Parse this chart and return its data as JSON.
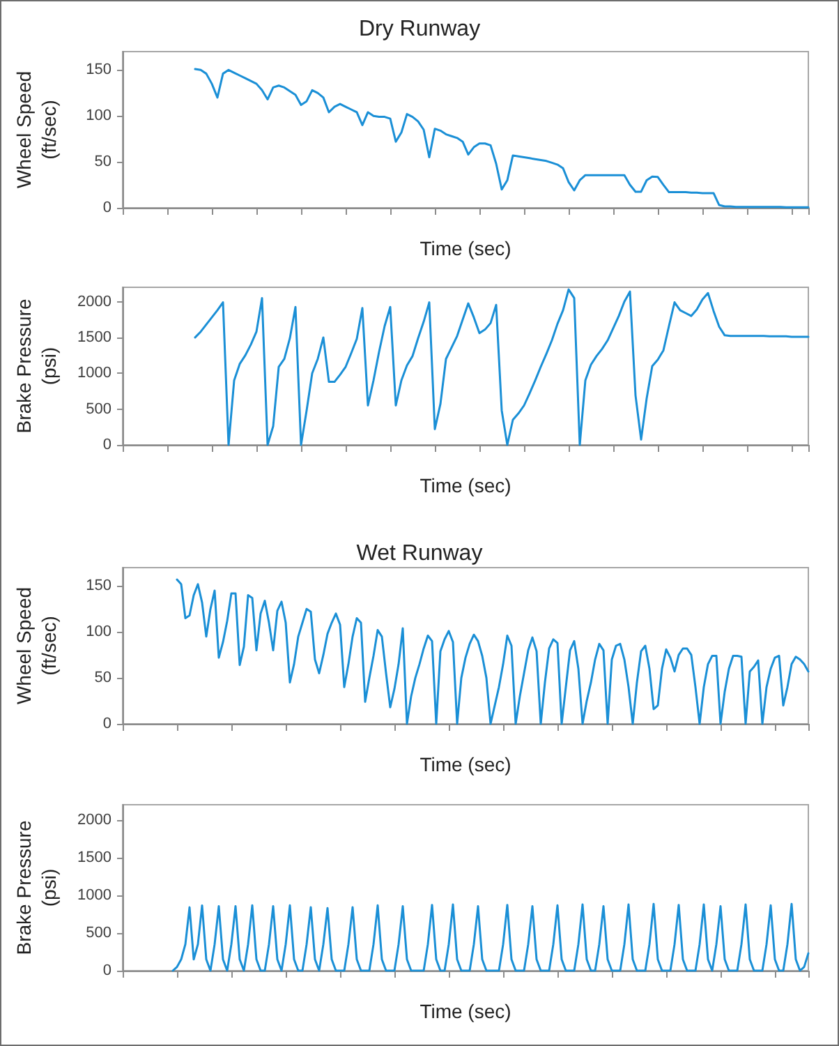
{
  "chart_data": [
    {
      "type": "line",
      "title": "Dry Runway",
      "xlabel": "Time (sec)",
      "ylabel": "Wheel Speed\n(ft/sec)",
      "color": "#1a8fd6",
      "line_style": "solid",
      "grid": false,
      "tick_labels": "y",
      "categories": [
        null,
        null,
        null,
        null,
        null,
        null,
        null,
        null,
        null,
        null,
        null,
        null,
        null,
        null,
        null,
        null,
        null,
        null,
        null,
        null,
        null,
        null,
        null,
        null,
        null,
        null,
        null,
        null,
        null,
        null,
        null,
        null,
        null,
        null,
        null,
        null,
        null,
        null,
        null,
        null,
        null,
        null,
        null,
        null,
        null,
        null,
        null,
        null,
        null,
        null,
        null,
        null,
        null,
        null,
        null,
        null,
        null,
        null,
        null,
        null,
        null,
        null,
        null,
        null,
        null,
        null,
        null,
        null,
        null,
        null,
        null,
        null,
        null,
        null,
        null,
        null,
        null,
        null,
        null,
        null,
        null,
        null,
        null,
        null,
        null,
        null,
        null,
        null,
        null,
        null,
        null,
        null,
        null,
        null,
        null,
        null,
        null,
        null,
        null,
        null,
        null,
        null,
        null,
        null,
        null,
        null,
        null,
        null,
        null,
        null,
        null,
        null,
        null,
        null,
        null,
        null,
        null,
        null,
        null,
        null,
        null,
        null,
        null,
        null
      ],
      "ylim": [
        0,
        170
      ],
      "yticks": [
        0,
        50,
        100,
        150
      ],
      "values": [
        null,
        null,
        null,
        null,
        null,
        null,
        null,
        null,
        null,
        null,
        null,
        null,
        null,
        151,
        150,
        146,
        135,
        120,
        146,
        150,
        147,
        144,
        141,
        138,
        135,
        128,
        118,
        131,
        133,
        131,
        127,
        123,
        112,
        116,
        128,
        125,
        120,
        104,
        110,
        113,
        110,
        107,
        104,
        90,
        104,
        100,
        99,
        99,
        97,
        72,
        82,
        102,
        99,
        94,
        85,
        55,
        86,
        84,
        80,
        78,
        76,
        72,
        58,
        66,
        70,
        70,
        68,
        48,
        20,
        30,
        57,
        56,
        55,
        54,
        53,
        52,
        51,
        49,
        47,
        43,
        28,
        19,
        30,
        35.5,
        35.5,
        35.5,
        35.5,
        35.5,
        35.5,
        35.5,
        35.5,
        25,
        17.5,
        17.5,
        30,
        34,
        33.5,
        25,
        17,
        17,
        17,
        17,
        16.5,
        16.5,
        16,
        16,
        16,
        3,
        1.5,
        1.5,
        1,
        1,
        1,
        1,
        1,
        1,
        1,
        1,
        1,
        0.5,
        0.5,
        0.5,
        0.5,
        0.5
      ]
    },
    {
      "type": "line",
      "xlabel": "Time (sec)",
      "ylabel": "Brake Pressure\n(psi)",
      "color": "#1a8fd6",
      "line_style": "solid",
      "grid": false,
      "tick_labels": "y",
      "categories": [
        null,
        null,
        null,
        null,
        null,
        null,
        null,
        null,
        null,
        null,
        null,
        null,
        null,
        null,
        null,
        null,
        null,
        null,
        null,
        null,
        null,
        null,
        null,
        null,
        null,
        null,
        null,
        null,
        null,
        null,
        null,
        null,
        null,
        null,
        null,
        null,
        null,
        null,
        null,
        null,
        null,
        null,
        null,
        null,
        null,
        null,
        null,
        null,
        null,
        null,
        null,
        null,
        null,
        null,
        null,
        null,
        null,
        null,
        null,
        null,
        null,
        null,
        null,
        null,
        null,
        null,
        null,
        null,
        null,
        null,
        null,
        null,
        null,
        null,
        null,
        null,
        null,
        null,
        null,
        null,
        null,
        null,
        null,
        null,
        null,
        null,
        null,
        null,
        null,
        null,
        null,
        null,
        null,
        null,
        null,
        null,
        null,
        null,
        null,
        null,
        null,
        null,
        null,
        null,
        null,
        null,
        null,
        null,
        null,
        null,
        null,
        null,
        null,
        null,
        null,
        null,
        null,
        null,
        null,
        null,
        null,
        null,
        null,
        null
      ],
      "ylim": [
        0,
        2200
      ],
      "yticks": [
        0,
        500,
        1000,
        1500,
        2000
      ],
      "values": [
        null,
        null,
        null,
        null,
        null,
        null,
        null,
        null,
        null,
        null,
        null,
        null,
        null,
        1500,
        1580,
        1680,
        1780,
        1880,
        1990,
        0,
        900,
        1130,
        1250,
        1400,
        1580,
        2050,
        0,
        260,
        1090,
        1200,
        1490,
        1925,
        0,
        480,
        1000,
        1200,
        1500,
        880,
        880,
        980,
        1090,
        1280,
        1480,
        1910,
        550,
        900,
        1300,
        1660,
        1925,
        550,
        900,
        1110,
        1240,
        1490,
        1720,
        1990,
        220,
        570,
        1200,
        1360,
        1520,
        1750,
        1975,
        1780,
        1560,
        1610,
        1700,
        1955,
        480,
        0,
        350,
        440,
        550,
        720,
        900,
        1090,
        1270,
        1460,
        1690,
        1880,
        2170,
        2050,
        0,
        900,
        1120,
        1240,
        1340,
        1460,
        1630,
        1800,
        2000,
        2140,
        690,
        75,
        650,
        1100,
        1190,
        1320,
        1660,
        1990,
        1880,
        1840,
        1800,
        1890,
        2030,
        2120,
        1870,
        1650,
        1530,
        1520,
        1520,
        1520,
        1520,
        1520,
        1520,
        1520,
        1515,
        1515,
        1515,
        1515,
        1510,
        1510,
        1510,
        1510
      ]
    },
    {
      "type": "line",
      "title": "Wet Runway",
      "xlabel": "Time (sec)",
      "ylabel": "Wheel Speed\n(ft/sec)",
      "color": "#1a8fd6",
      "line_style": "solid",
      "grid": false,
      "tick_labels": "y",
      "categories": [
        null,
        null,
        null,
        null,
        null,
        null,
        null,
        null,
        null,
        null,
        null,
        null,
        null,
        null,
        null,
        null,
        null,
        null,
        null,
        null,
        null,
        null,
        null,
        null,
        null,
        null,
        null,
        null,
        null,
        null,
        null,
        null,
        null,
        null,
        null,
        null,
        null,
        null,
        null,
        null,
        null,
        null,
        null,
        null,
        null,
        null,
        null,
        null,
        null,
        null,
        null,
        null,
        null,
        null,
        null,
        null,
        null,
        null,
        null,
        null,
        null,
        null,
        null,
        null,
        null,
        null,
        null,
        null,
        null,
        null,
        null,
        null,
        null,
        null,
        null,
        null,
        null,
        null,
        null,
        null,
        null,
        null,
        null,
        null,
        null,
        null,
        null,
        null,
        null,
        null,
        null,
        null,
        null,
        null,
        null,
        null,
        null,
        null,
        null,
        null,
        null,
        null,
        null,
        null,
        null,
        null,
        null,
        null,
        null,
        null,
        null,
        null,
        null,
        null,
        null,
        null,
        null,
        null,
        null,
        null,
        null,
        null,
        null,
        null,
        null,
        null,
        null,
        null,
        null,
        null,
        null,
        null,
        null,
        null,
        null,
        null,
        null,
        null,
        null,
        null,
        null,
        null,
        null,
        null,
        null,
        null,
        null,
        null,
        null,
        null,
        null,
        null,
        null,
        null,
        null,
        null,
        null,
        null,
        null,
        null,
        null,
        null,
        null,
        null,
        null
      ],
      "ylim": [
        0,
        170
      ],
      "yticks": [
        0,
        50,
        100,
        150
      ],
      "values": [
        null,
        null,
        null,
        null,
        null,
        null,
        null,
        null,
        null,
        null,
        null,
        null,
        null,
        157,
        152,
        115,
        118,
        140,
        152,
        132,
        95,
        125,
        145,
        72,
        89,
        112,
        142,
        142,
        64,
        84,
        140,
        137,
        80,
        120,
        134,
        110,
        80,
        123,
        133,
        110,
        45,
        65,
        95,
        110,
        125,
        122,
        70,
        55,
        75,
        98,
        110,
        120,
        108,
        40,
        65,
        95,
        115,
        110,
        24,
        50,
        74,
        102,
        95,
        55,
        18,
        38,
        65,
        104,
        0,
        30,
        50,
        65,
        82,
        96,
        90,
        0,
        79,
        92,
        101,
        89,
        0,
        50,
        72,
        87,
        97,
        90,
        74,
        50,
        0,
        20,
        40,
        65,
        96,
        85,
        0,
        30,
        55,
        80,
        94,
        79,
        0,
        45,
        82,
        92,
        88,
        0,
        40,
        80,
        90,
        60,
        0,
        25,
        45,
        70,
        87,
        80,
        0,
        70,
        85,
        87,
        70,
        40,
        0,
        45,
        79,
        85,
        60,
        16,
        20,
        60,
        81,
        72,
        57,
        75,
        82,
        82,
        75,
        40,
        0,
        40,
        65,
        74,
        74,
        0,
        35,
        60,
        74,
        74,
        73,
        0,
        57,
        62,
        69,
        0,
        40,
        60,
        72,
        74,
        20,
        40,
        65,
        73,
        70,
        65,
        57
      ]
    },
    {
      "type": "line",
      "xlabel": "Time (sec)",
      "ylabel": "Brake Pressure\n(psi)",
      "color": "#1a8fd6",
      "line_style": "solid",
      "grid": false,
      "tick_labels": "y",
      "categories": [
        null,
        null,
        null,
        null,
        null,
        null,
        null,
        null,
        null,
        null,
        null,
        null,
        null,
        null,
        null,
        null,
        null,
        null,
        null,
        null,
        null,
        null,
        null,
        null,
        null,
        null,
        null,
        null,
        null,
        null,
        null,
        null,
        null,
        null,
        null,
        null,
        null,
        null,
        null,
        null,
        null,
        null,
        null,
        null,
        null,
        null,
        null,
        null,
        null,
        null,
        null,
        null,
        null,
        null,
        null,
        null,
        null,
        null,
        null,
        null,
        null,
        null,
        null,
        null,
        null,
        null,
        null,
        null,
        null,
        null,
        null,
        null,
        null,
        null,
        null,
        null,
        null,
        null,
        null,
        null,
        null,
        null,
        null,
        null,
        null,
        null,
        null,
        null,
        null,
        null,
        null,
        null,
        null,
        null,
        null,
        null,
        null,
        null,
        null,
        null,
        null,
        null,
        null,
        null,
        null,
        null,
        null,
        null,
        null,
        null,
        null,
        null,
        null,
        null,
        null,
        null,
        null,
        null,
        null,
        null,
        null,
        null,
        null,
        null,
        null,
        null,
        null,
        null,
        null,
        null,
        null,
        null,
        null,
        null,
        null,
        null,
        null,
        null,
        null,
        null,
        null,
        null,
        null,
        null,
        null,
        null,
        null,
        null,
        null,
        null,
        null,
        null,
        null,
        null,
        null,
        null,
        null,
        null,
        null,
        null,
        null,
        null,
        null,
        null,
        null
      ],
      "ylim": [
        0,
        2200
      ],
      "yticks": [
        0,
        500,
        1000,
        1500,
        2000
      ],
      "values": [
        null,
        null,
        null,
        null,
        null,
        null,
        null,
        null,
        null,
        null,
        null,
        null,
        0,
        50,
        150,
        350,
        840,
        150,
        350,
        865,
        150,
        0,
        350,
        855,
        150,
        0,
        350,
        855,
        150,
        0,
        350,
        866,
        150,
        0,
        0,
        350,
        855,
        150,
        0,
        350,
        866,
        150,
        0,
        0,
        350,
        842,
        150,
        0,
        350,
        830,
        150,
        0,
        0,
        0,
        350,
        842,
        150,
        0,
        0,
        0,
        350,
        866,
        150,
        0,
        0,
        0,
        350,
        854,
        150,
        0,
        0,
        0,
        0,
        350,
        872,
        150,
        0,
        0,
        350,
        878,
        150,
        0,
        0,
        0,
        350,
        854,
        150,
        0,
        0,
        0,
        0,
        350,
        872,
        150,
        0,
        0,
        0,
        350,
        854,
        150,
        0,
        0,
        0,
        350,
        866,
        150,
        0,
        0,
        0,
        350,
        878,
        150,
        0,
        0,
        350,
        854,
        150,
        0,
        0,
        0,
        350,
        878,
        150,
        0,
        0,
        0,
        350,
        885,
        150,
        0,
        0,
        0,
        350,
        872,
        150,
        0,
        0,
        0,
        350,
        878,
        150,
        0,
        350,
        854,
        150,
        0,
        0,
        0,
        350,
        878,
        150,
        0,
        0,
        0,
        350,
        866,
        150,
        0,
        0,
        350,
        885,
        150,
        0,
        50,
        230
      ]
    }
  ]
}
